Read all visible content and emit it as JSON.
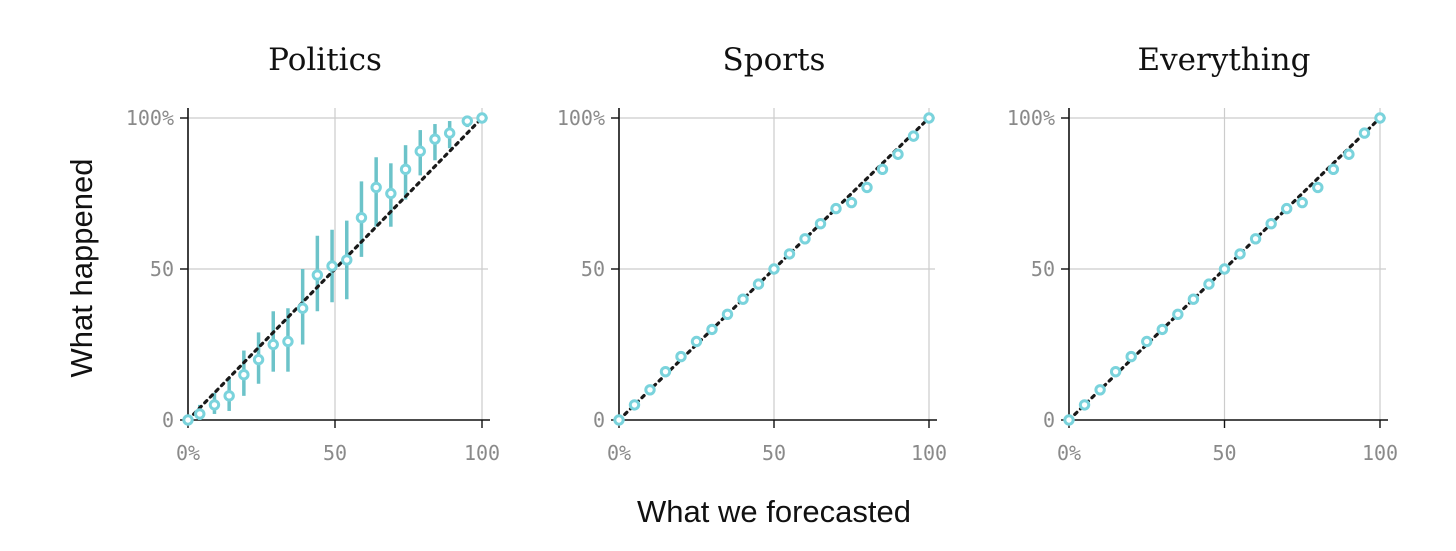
{
  "figure": {
    "xlabel": "What we forecasted",
    "ylabel": "What happened",
    "colors": {
      "marker": "#7ad3dc",
      "marker_fill": "#ffffff",
      "interval": "#6cc3c9",
      "diagonal": "#1a1a1a",
      "grid": "#cccccc",
      "axis": "#111111"
    }
  },
  "chart_data": [
    {
      "type": "scatter",
      "title": "Politics",
      "xlim": [
        0,
        100
      ],
      "ylim": [
        0,
        100
      ],
      "x_ticks": [
        "0%",
        "50",
        "100"
      ],
      "y_ticks": [
        "0",
        "50",
        "100%"
      ],
      "grid": true,
      "reference_line": "y = x (dotted)",
      "points": [
        {
          "x": 0,
          "y": 0
        },
        {
          "x": 4,
          "y": 2,
          "low": 0,
          "high": 5
        },
        {
          "x": 9,
          "y": 5,
          "low": 2,
          "high": 9
        },
        {
          "x": 14,
          "y": 8,
          "low": 3,
          "high": 14
        },
        {
          "x": 19,
          "y": 15,
          "low": 8,
          "high": 23
        },
        {
          "x": 24,
          "y": 20,
          "low": 12,
          "high": 29
        },
        {
          "x": 29,
          "y": 25,
          "low": 16,
          "high": 36
        },
        {
          "x": 34,
          "y": 26,
          "low": 16,
          "high": 37
        },
        {
          "x": 39,
          "y": 37,
          "low": 25,
          "high": 50
        },
        {
          "x": 44,
          "y": 48,
          "low": 36,
          "high": 61
        },
        {
          "x": 49,
          "y": 51,
          "low": 39,
          "high": 63
        },
        {
          "x": 54,
          "y": 53,
          "low": 40,
          "high": 66
        },
        {
          "x": 59,
          "y": 67,
          "low": 54,
          "high": 79
        },
        {
          "x": 64,
          "y": 77,
          "low": 64,
          "high": 87
        },
        {
          "x": 69,
          "y": 75,
          "low": 64,
          "high": 85
        },
        {
          "x": 74,
          "y": 83,
          "low": 73,
          "high": 91
        },
        {
          "x": 79,
          "y": 89,
          "low": 81,
          "high": 96
        },
        {
          "x": 84,
          "y": 93,
          "low": 86,
          "high": 98
        },
        {
          "x": 89,
          "y": 95,
          "low": 90,
          "high": 99
        },
        {
          "x": 95,
          "y": 99,
          "low": 97,
          "high": 100
        },
        {
          "x": 100,
          "y": 100
        }
      ]
    },
    {
      "type": "scatter",
      "title": "Sports",
      "xlim": [
        0,
        100
      ],
      "ylim": [
        0,
        100
      ],
      "x_ticks": [
        "0%",
        "50",
        "100"
      ],
      "y_ticks": [
        "0",
        "50",
        "100%"
      ],
      "grid": true,
      "reference_line": "y = x (dotted)",
      "points": [
        {
          "x": 0,
          "y": 0
        },
        {
          "x": 5,
          "y": 5
        },
        {
          "x": 10,
          "y": 10
        },
        {
          "x": 15,
          "y": 16
        },
        {
          "x": 20,
          "y": 21
        },
        {
          "x": 25,
          "y": 26
        },
        {
          "x": 30,
          "y": 30
        },
        {
          "x": 35,
          "y": 35
        },
        {
          "x": 40,
          "y": 40
        },
        {
          "x": 45,
          "y": 45
        },
        {
          "x": 50,
          "y": 50
        },
        {
          "x": 55,
          "y": 55
        },
        {
          "x": 60,
          "y": 60
        },
        {
          "x": 65,
          "y": 65
        },
        {
          "x": 70,
          "y": 70
        },
        {
          "x": 75,
          "y": 72
        },
        {
          "x": 80,
          "y": 77
        },
        {
          "x": 85,
          "y": 83
        },
        {
          "x": 90,
          "y": 88
        },
        {
          "x": 95,
          "y": 94
        },
        {
          "x": 100,
          "y": 100
        }
      ]
    },
    {
      "type": "scatter",
      "title": "Everything",
      "xlim": [
        0,
        100
      ],
      "ylim": [
        0,
        100
      ],
      "x_ticks": [
        "0%",
        "50",
        "100"
      ],
      "y_ticks": [
        "0",
        "50",
        "100%"
      ],
      "grid": true,
      "reference_line": "y = x (dotted)",
      "points": [
        {
          "x": 0,
          "y": 0
        },
        {
          "x": 5,
          "y": 5
        },
        {
          "x": 10,
          "y": 10
        },
        {
          "x": 15,
          "y": 16
        },
        {
          "x": 20,
          "y": 21
        },
        {
          "x": 25,
          "y": 26
        },
        {
          "x": 30,
          "y": 30
        },
        {
          "x": 35,
          "y": 35
        },
        {
          "x": 40,
          "y": 40
        },
        {
          "x": 45,
          "y": 45
        },
        {
          "x": 50,
          "y": 50
        },
        {
          "x": 55,
          "y": 55
        },
        {
          "x": 60,
          "y": 60
        },
        {
          "x": 65,
          "y": 65
        },
        {
          "x": 70,
          "y": 70
        },
        {
          "x": 75,
          "y": 72
        },
        {
          "x": 80,
          "y": 77
        },
        {
          "x": 85,
          "y": 83
        },
        {
          "x": 90,
          "y": 88
        },
        {
          "x": 95,
          "y": 95
        },
        {
          "x": 100,
          "y": 100
        }
      ]
    }
  ]
}
